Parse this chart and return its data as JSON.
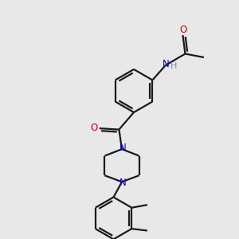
{
  "bg_color": "#e8e8e8",
  "bond_color": "#1a1a1a",
  "N_color": "#0000cd",
  "O_color": "#cc0000",
  "H_color": "#5f9ea0",
  "linewidth": 1.6,
  "figsize": [
    3.0,
    3.0
  ],
  "dpi": 100,
  "xlim": [
    0,
    10
  ],
  "ylim": [
    0,
    10
  ]
}
